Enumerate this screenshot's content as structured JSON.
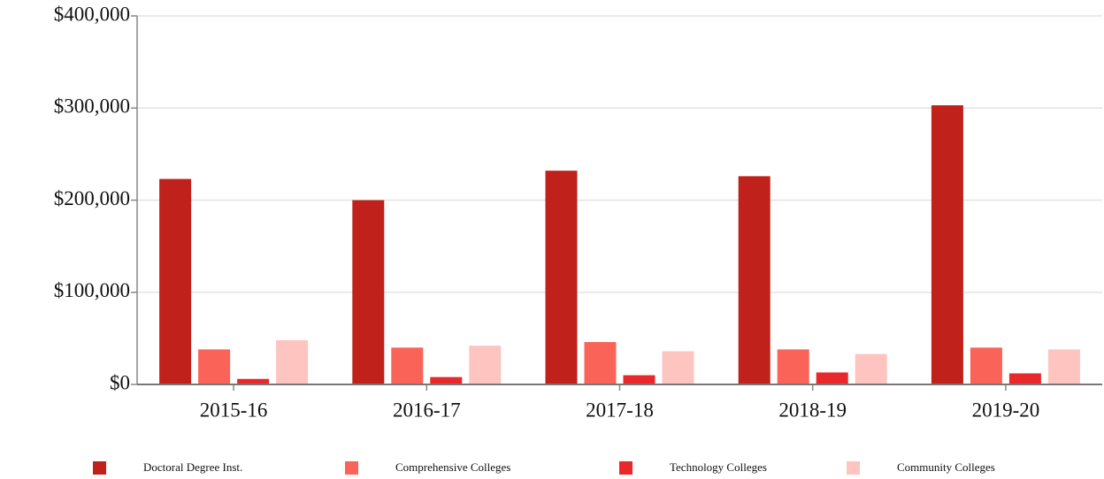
{
  "chart_data": {
    "type": "bar",
    "categories": [
      "2015-16",
      "2016-17",
      "2017-18",
      "2018-19",
      "2019-20"
    ],
    "series": [
      {
        "name": "Doctoral Degree Inst.",
        "color": "#c0211a",
        "values": [
          223000,
          200000,
          232000,
          226000,
          303000
        ]
      },
      {
        "name": "Comprehensive Colleges",
        "color": "#fa6357",
        "values": [
          38000,
          40000,
          46000,
          38000,
          40000
        ]
      },
      {
        "name": "Technology Colleges",
        "color": "#e8282b",
        "values": [
          6000,
          8000,
          10000,
          13000,
          12000
        ]
      },
      {
        "name": "Community Colleges",
        "color": "#fdc4c0",
        "values": [
          48000,
          42000,
          36000,
          33000,
          38000
        ]
      }
    ],
    "ylim": [
      0,
      400000
    ],
    "yticks": [
      {
        "value": 0,
        "label": "$0"
      },
      {
        "value": 100000,
        "label": "$100,000"
      },
      {
        "value": 200000,
        "label": "$200,000"
      },
      {
        "value": 300000,
        "label": "$300,000"
      },
      {
        "value": 400000,
        "label": "$400,000"
      }
    ],
    "grid": true,
    "legend": "bottom"
  }
}
